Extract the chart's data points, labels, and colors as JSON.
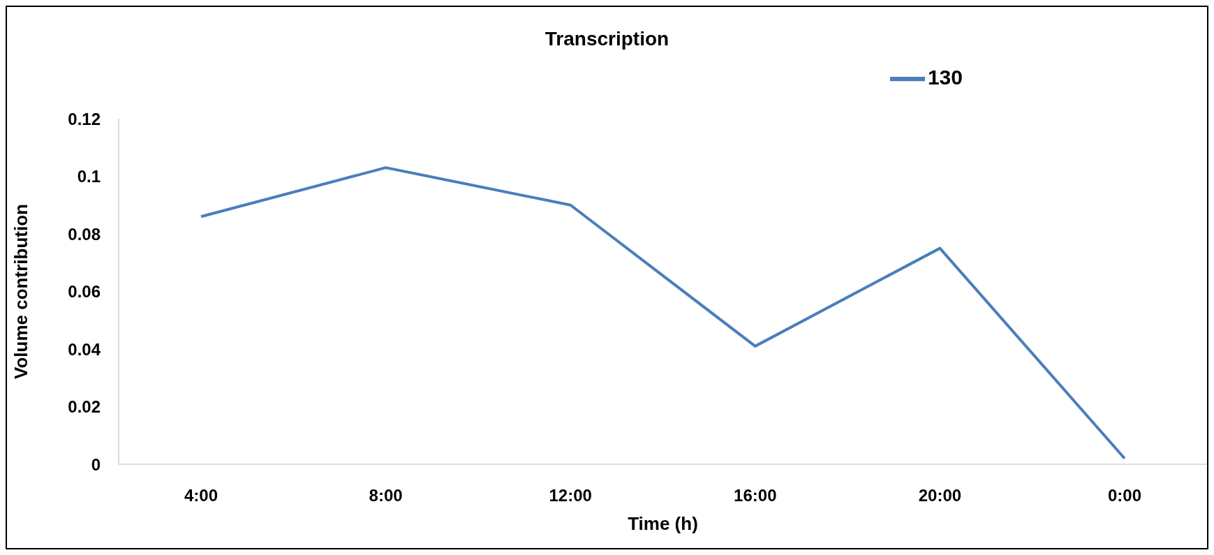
{
  "chart_data": {
    "type": "line",
    "title": "Transcription",
    "xlabel": "Time (h)",
    "ylabel": "Volume contribution",
    "categories": [
      "4:00",
      "8:00",
      "12:00",
      "16:00",
      "20:00",
      "0:00"
    ],
    "series": [
      {
        "name": "130",
        "color": "#4a7ebb",
        "values": [
          0.086,
          0.103,
          0.09,
          0.041,
          0.075,
          0.002
        ]
      }
    ],
    "ylim": [
      0,
      0.12
    ],
    "yticks": [
      0,
      0.02,
      0.04,
      0.06,
      0.08,
      0.1,
      0.12
    ],
    "grid": false,
    "legend": "top right",
    "marker": "none",
    "line_style": "solid"
  }
}
